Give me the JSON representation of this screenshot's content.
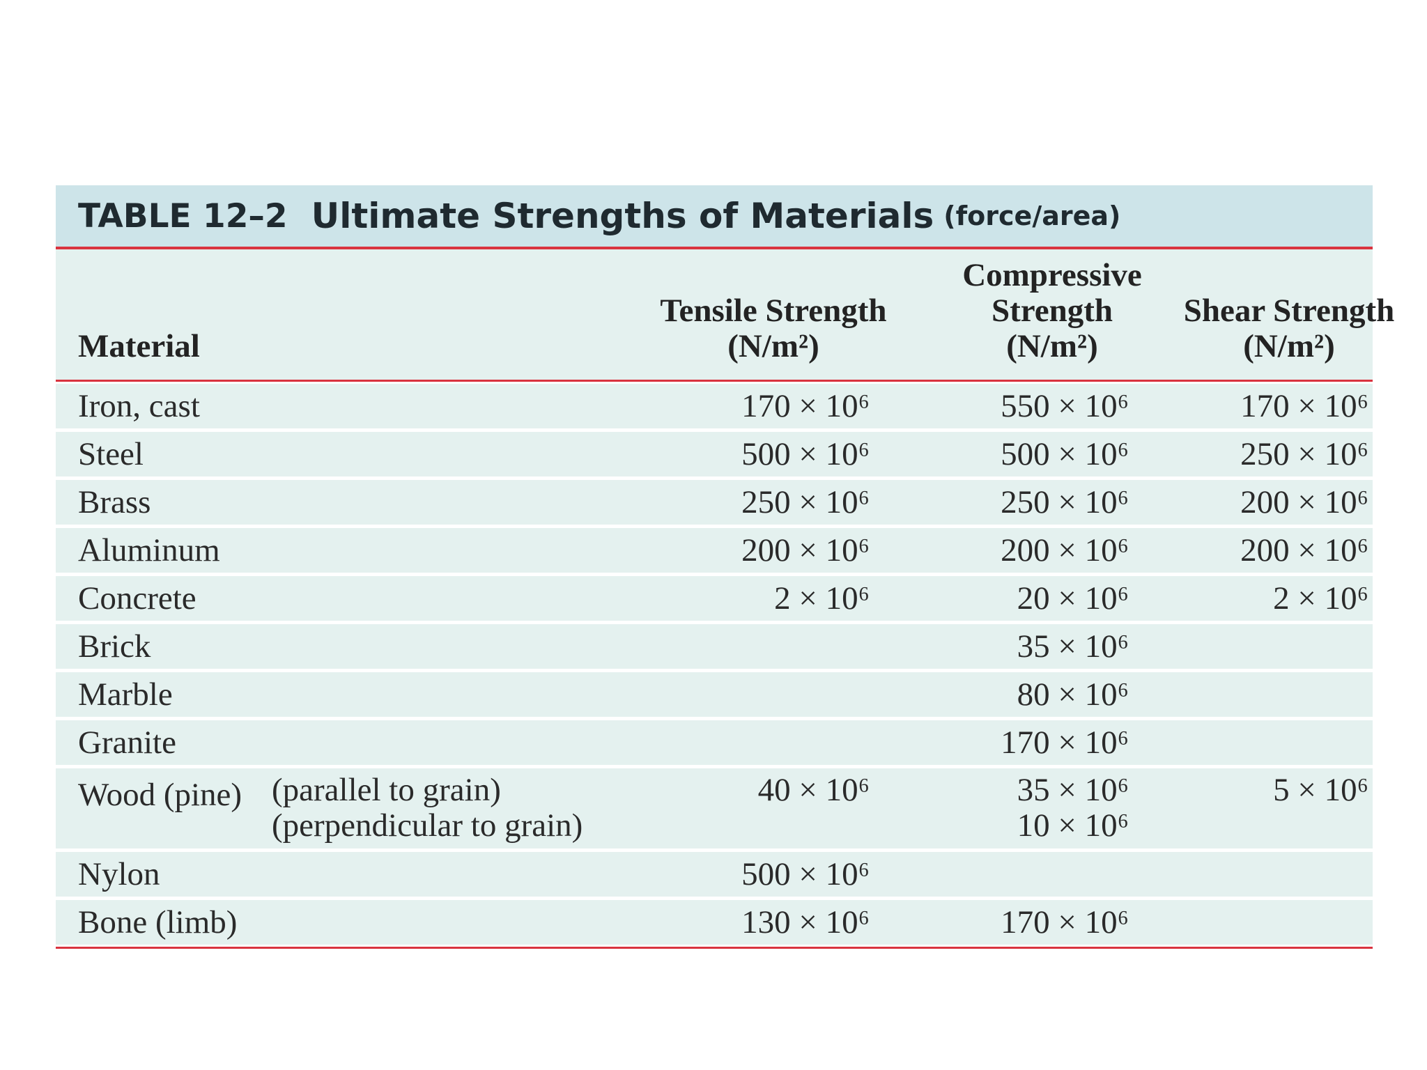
{
  "table": {
    "number": "TABLE 12–2",
    "title": "Ultimate Strengths of Materials",
    "subtitle": "(force/area)",
    "headers": {
      "material": "Material",
      "tensile": [
        "Tensile Strength",
        "(N/m²)"
      ],
      "compressive": [
        "Compressive",
        "Strength",
        "(N/m²)"
      ],
      "shear": [
        "Shear Strength",
        "(N/m²)"
      ]
    },
    "rows": [
      {
        "material": "Iron, cast",
        "tensile": "170 × 10⁶",
        "compressive": "550 × 10⁶",
        "shear": "170 × 10⁶"
      },
      {
        "material": "Steel",
        "tensile": "500 × 10⁶",
        "compressive": "500 × 10⁶",
        "shear": "250 × 10⁶"
      },
      {
        "material": "Brass",
        "tensile": "250 × 10⁶",
        "compressive": "250 × 10⁶",
        "shear": "200 × 10⁶"
      },
      {
        "material": "Aluminum",
        "tensile": "200 × 10⁶",
        "compressive": "200 × 10⁶",
        "shear": "200 × 10⁶"
      },
      {
        "material": "Concrete",
        "tensile": "2 × 10⁶",
        "compressive": "20 × 10⁶",
        "shear": "2 × 10⁶"
      },
      {
        "material": "Brick",
        "tensile": "",
        "compressive": "35 × 10⁶",
        "shear": ""
      },
      {
        "material": "Marble",
        "tensile": "",
        "compressive": "80 × 10⁶",
        "shear": ""
      },
      {
        "material": "Granite",
        "tensile": "",
        "compressive": "170 × 10⁶",
        "shear": ""
      },
      {
        "material": "Wood (pine)",
        "notes": [
          "(parallel to grain)",
          "(perpendicular to grain)"
        ],
        "tensile": "40 × 10⁶",
        "compressive": [
          "35 × 10⁶",
          "10 × 10⁶"
        ],
        "shear": "5 × 10⁶"
      },
      {
        "material": "Nylon",
        "tensile": "500 × 10⁶",
        "compressive": "",
        "shear": ""
      },
      {
        "material": "Bone (limb)",
        "tensile": "130 × 10⁶",
        "compressive": "170 × 10⁶",
        "shear": ""
      }
    ]
  }
}
